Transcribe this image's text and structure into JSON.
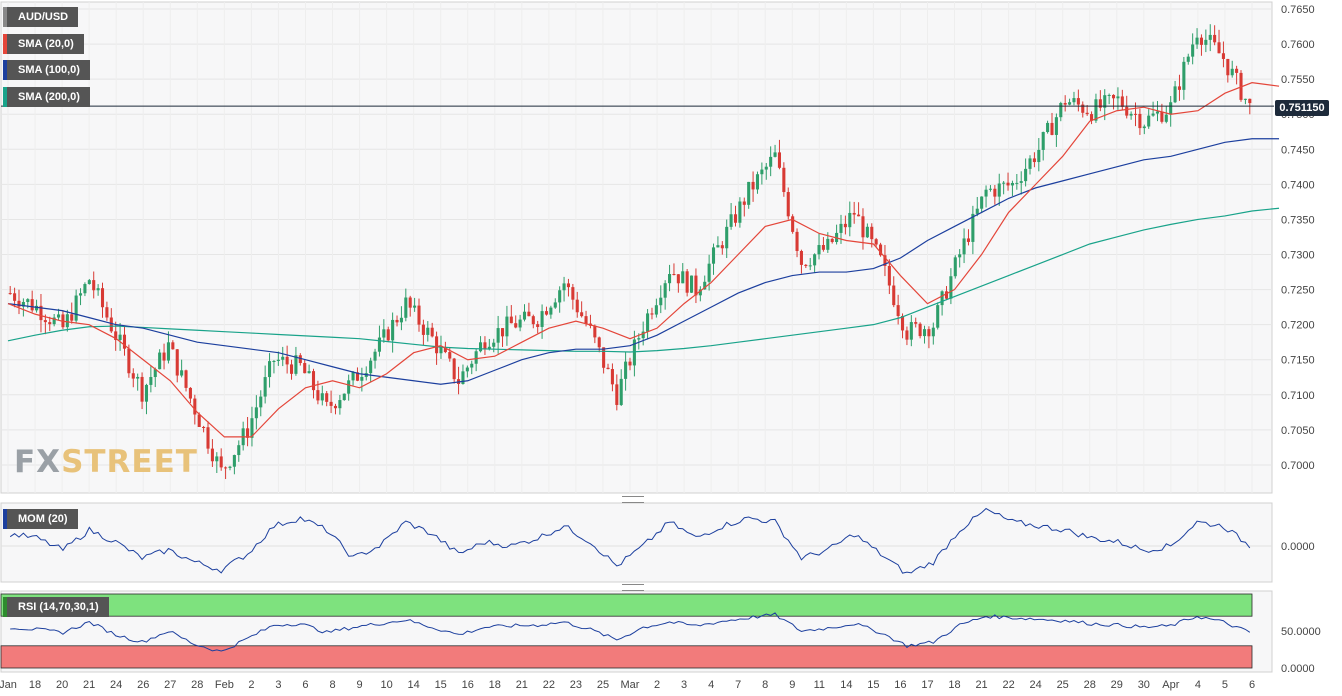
{
  "main": {
    "symbol_label": "AUD/USD",
    "legend": [
      {
        "label": "SMA (20,0)",
        "color": "#e4463a"
      },
      {
        "label": "SMA (100,0)",
        "color": "#1c3f9e"
      },
      {
        "label": "SMA (200,0)",
        "color": "#19a38a"
      }
    ],
    "last_price": "0.751150",
    "logo_fx": "FX",
    "logo_street": "STREET"
  },
  "mom": {
    "label": "MOM (20)",
    "zero_label": "0.0000"
  },
  "rsi": {
    "label": "RSI (14,70,30,1)",
    "tick_labels": [
      "50.0000",
      "0.0000"
    ]
  },
  "chart_data": [
    {
      "type": "candlestick",
      "title": "AUD/USD",
      "ylim": [
        0.696,
        0.766
      ],
      "y_ticks": [
        "0.7650",
        "0.7600",
        "0.7550",
        "0.7500",
        "0.7450",
        "0.7400",
        "0.7350",
        "0.7300",
        "0.7250",
        "0.7200",
        "0.7150",
        "0.7100",
        "0.7050",
        "0.7000"
      ],
      "x_tick_labels": [
        "Jan",
        "18",
        "20",
        "21",
        "24",
        "26",
        "27",
        "28",
        "Feb",
        "2",
        "3",
        "6",
        "8",
        "9",
        "10",
        "14",
        "15",
        "16",
        "18",
        "21",
        "22",
        "23",
        "25",
        "Mar",
        "2",
        "3",
        "4",
        "7",
        "8",
        "9",
        "11",
        "14",
        "15",
        "16",
        "17",
        "18",
        "21",
        "22",
        "24",
        "25",
        "28",
        "29",
        "30",
        "Apr",
        "4",
        "5",
        "6"
      ],
      "series_close_approx": [
        0.7245,
        0.7225,
        0.7195,
        0.7265,
        0.7185,
        0.7105,
        0.717,
        0.708,
        0.699,
        0.705,
        0.715,
        0.714,
        0.708,
        0.712,
        0.717,
        0.723,
        0.718,
        0.712,
        0.718,
        0.72,
        0.721,
        0.726,
        0.719,
        0.71,
        0.72,
        0.728,
        0.725,
        0.732,
        0.739,
        0.744,
        0.729,
        0.731,
        0.736,
        0.729,
        0.719,
        0.72,
        0.73,
        0.739,
        0.74,
        0.745,
        0.752,
        0.7505,
        0.752,
        0.749,
        0.751,
        0.762,
        0.758,
        0.751
      ],
      "sma20_approx": [
        0.723,
        0.7215,
        0.7205,
        0.72,
        0.718,
        0.715,
        0.712,
        0.7075,
        0.704,
        0.704,
        0.708,
        0.711,
        0.712,
        0.711,
        0.713,
        0.716,
        0.717,
        0.715,
        0.7155,
        0.7175,
        0.7195,
        0.7205,
        0.7195,
        0.718,
        0.7195,
        0.723,
        0.726,
        0.73,
        0.734,
        0.735,
        0.733,
        0.732,
        0.7315,
        0.727,
        0.723,
        0.725,
        0.73,
        0.736,
        0.74,
        0.744,
        0.749,
        0.7505,
        0.751,
        0.75,
        0.7505,
        0.753,
        0.7545,
        0.754
      ],
      "sma100_approx": [
        0.723,
        0.7225,
        0.722,
        0.721,
        0.72,
        0.7195,
        0.7185,
        0.7175,
        0.717,
        0.7165,
        0.716,
        0.715,
        0.714,
        0.713,
        0.7125,
        0.712,
        0.7115,
        0.712,
        0.7135,
        0.715,
        0.716,
        0.7165,
        0.7165,
        0.717,
        0.7185,
        0.7205,
        0.7225,
        0.7245,
        0.726,
        0.727,
        0.7275,
        0.7275,
        0.728,
        0.7295,
        0.732,
        0.734,
        0.736,
        0.738,
        0.7395,
        0.7405,
        0.7415,
        0.7425,
        0.7435,
        0.744,
        0.745,
        0.746,
        0.7465,
        0.7465
      ],
      "sma200_approx": [
        0.7177,
        0.7185,
        0.7192,
        0.7197,
        0.7198,
        0.7196,
        0.7194,
        0.7192,
        0.719,
        0.7188,
        0.7186,
        0.7184,
        0.7182,
        0.718,
        0.7176,
        0.7172,
        0.7168,
        0.7166,
        0.7165,
        0.7164,
        0.7163,
        0.7162,
        0.7162,
        0.7161,
        0.7163,
        0.7166,
        0.717,
        0.7175,
        0.718,
        0.7185,
        0.719,
        0.7195,
        0.72,
        0.721,
        0.7225,
        0.724,
        0.7255,
        0.727,
        0.7285,
        0.73,
        0.7315,
        0.7325,
        0.7335,
        0.7343,
        0.735,
        0.7355,
        0.7362,
        0.7366
      ]
    },
    {
      "type": "line",
      "title": "MOM (20)",
      "y_ticks": [
        "0.0000"
      ],
      "values": [
        0.3,
        0.2,
        -0.1,
        0.4,
        0.1,
        -0.3,
        -0.1,
        -0.4,
        -0.6,
        -0.2,
        0.5,
        0.7,
        0.4,
        -0.3,
        0.0,
        0.6,
        0.3,
        -0.2,
        0.1,
        0.0,
        0.2,
        0.5,
        0.1,
        -0.5,
        0.0,
        0.6,
        0.2,
        0.5,
        0.7,
        0.6,
        -0.3,
        -0.1,
        0.3,
        -0.2,
        -0.7,
        -0.4,
        0.4,
        0.9,
        0.6,
        0.5,
        0.4,
        0.2,
        0.1,
        -0.1,
        0.0,
        0.6,
        0.5,
        0.0
      ]
    },
    {
      "type": "line",
      "title": "RSI (14,70,30,1)",
      "ylim": [
        0,
        100
      ],
      "overbought": 70,
      "oversold": 30,
      "y_ticks": [
        "50.0000",
        "0.0000"
      ],
      "values": [
        55,
        52,
        48,
        62,
        45,
        35,
        50,
        32,
        22,
        40,
        58,
        60,
        48,
        55,
        60,
        65,
        55,
        45,
        55,
        57,
        58,
        62,
        52,
        38,
        55,
        62,
        57,
        63,
        68,
        72,
        50,
        54,
        60,
        48,
        30,
        35,
        58,
        70,
        68,
        66,
        64,
        60,
        58,
        55,
        57,
        70,
        62,
        48
      ]
    }
  ]
}
